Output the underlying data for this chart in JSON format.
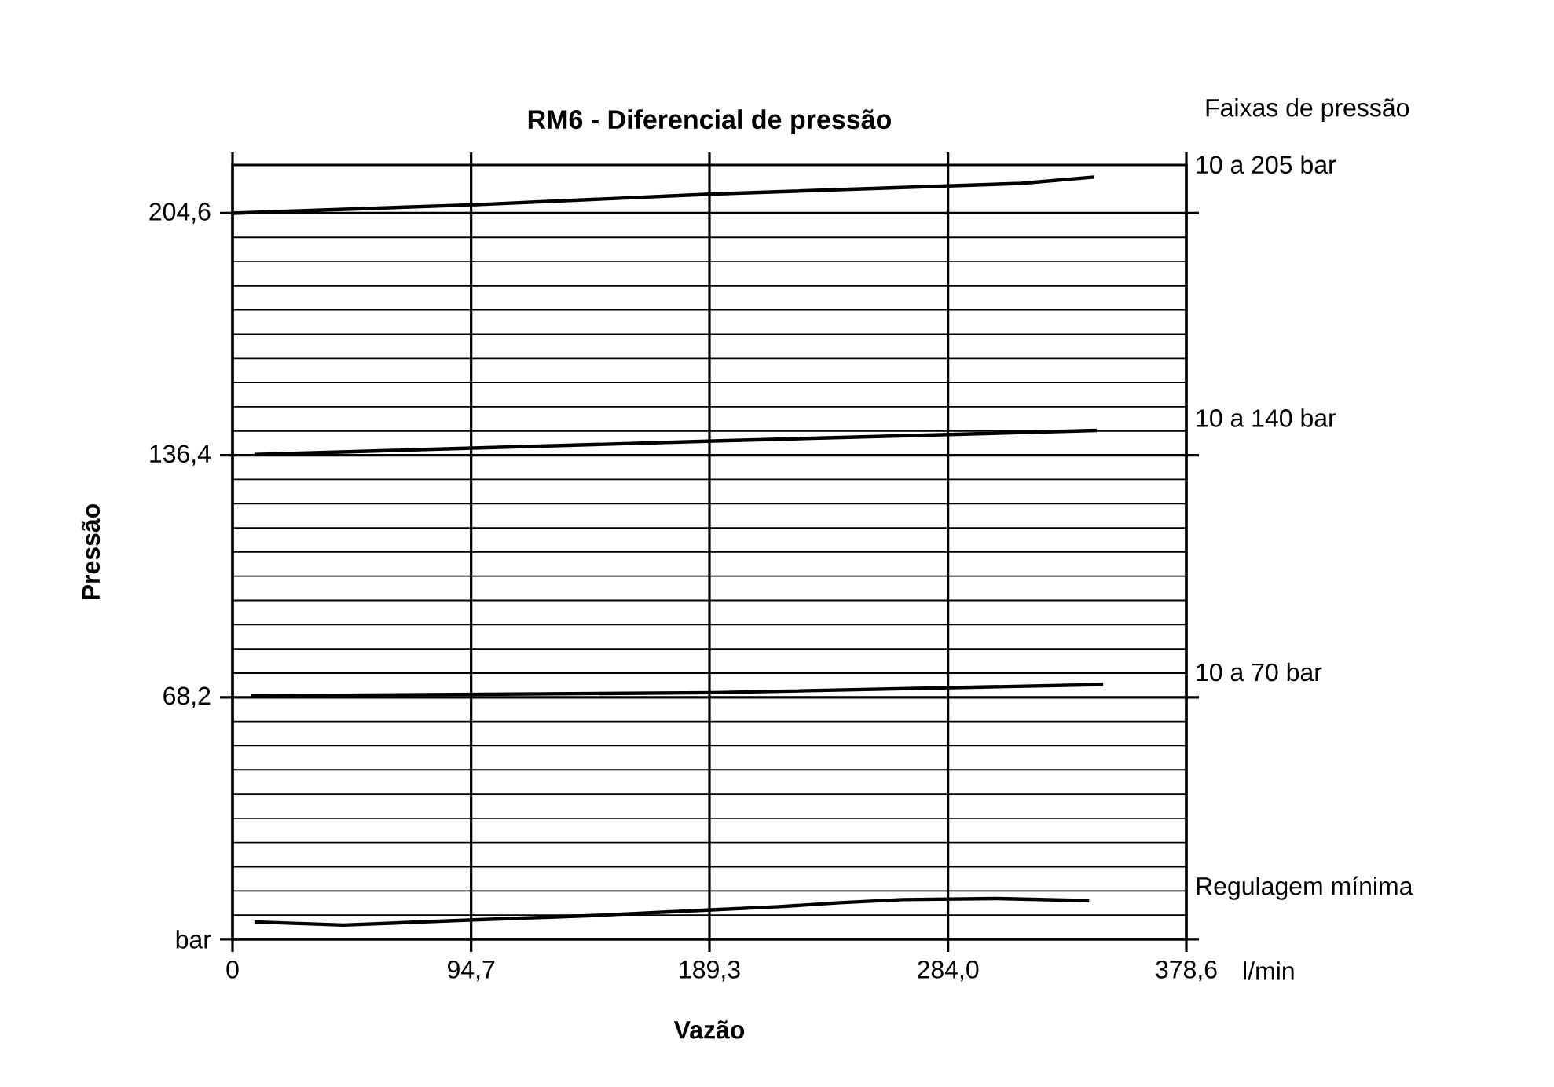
{
  "chart_data": {
    "type": "line",
    "title": "RM6 - Diferencial de pressão",
    "xlabel": "Vazão",
    "ylabel": "Pressão",
    "legend_title": "Faixas de pressão",
    "annotations": [
      "l/min"
    ],
    "xlim": [
      0,
      378.6
    ],
    "ylim": [
      0,
      218.2
    ],
    "xticks": [
      0,
      {
        "value": 94.7,
        "label": "94,7"
      },
      {
        "value": 189.3,
        "label": "189,3"
      },
      {
        "value": 284.0,
        "label": "284,0"
      },
      {
        "value": 378.6,
        "label": "378,6"
      }
    ],
    "yticks": [
      {
        "value": 0,
        "label": "bar"
      },
      {
        "value": 68.2,
        "label": "68,2"
      },
      {
        "value": 136.4,
        "label": "136,4"
      },
      {
        "value": 204.6,
        "label": "204,6"
      }
    ],
    "grid": true,
    "line_style": "solid",
    "marker": "none",
    "series": [
      {
        "name": "10 a 205 bar",
        "color": "#000000",
        "x": [
          0,
          96.7,
          190.9,
          313,
          342
        ],
        "values": [
          204.6,
          207,
          210,
          213,
          214.8
        ]
      },
      {
        "name": "10 a 140 bar",
        "color": "#000000",
        "x": [
          8.7,
          190.9,
          343
        ],
        "values": [
          136.6,
          140.4,
          143.4
        ]
      },
      {
        "name": "10 a 70 bar",
        "color": "#000000",
        "x": [
          7.5,
          190.9,
          345.6
        ],
        "values": [
          68.6,
          69.5,
          71.8
        ]
      },
      {
        "name": "Regulagem mínima",
        "color": "#000000",
        "x": [
          8.7,
          44,
          93.6,
          143,
          190,
          217,
          241,
          266,
          303,
          340
        ],
        "values": [
          4.9,
          4.0,
          5.4,
          6.7,
          8.3,
          9.2,
          10.3,
          11.2,
          11.5,
          10.9
        ]
      }
    ]
  }
}
